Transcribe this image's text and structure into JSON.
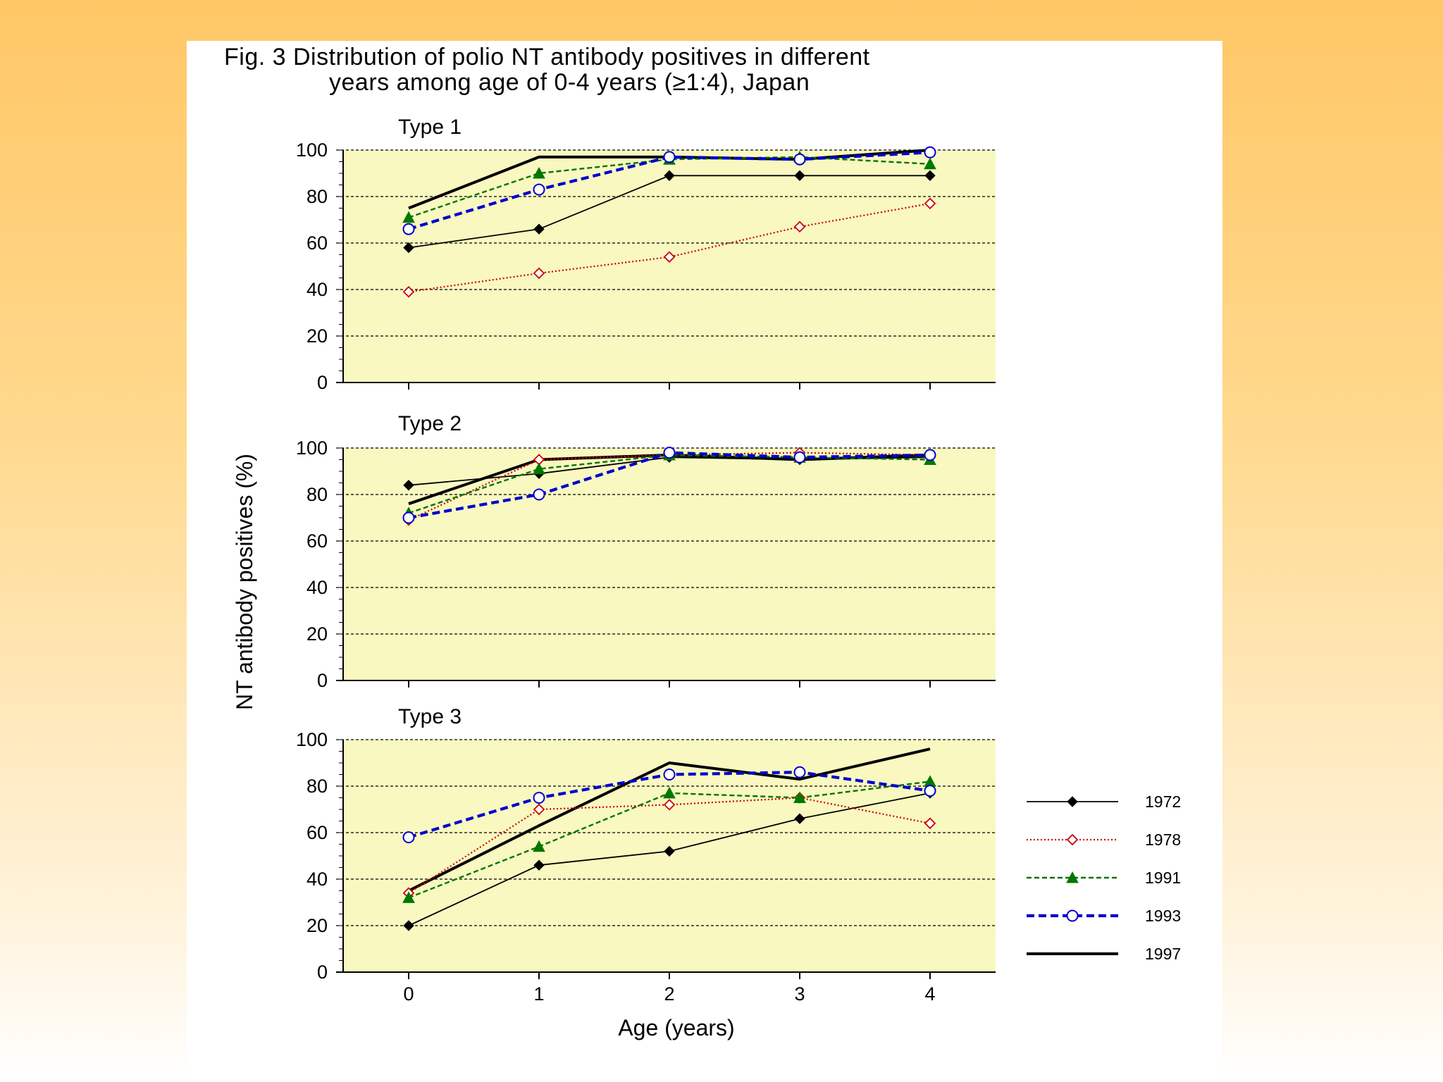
{
  "title_line1": "Fig. 3  Distribution of polio NT antibody positives in different",
  "title_line2": "years among  age of 0-4 years (≥1:4), Japan",
  "colors": {
    "plot_bg": "#F8F8C0",
    "page_bg_top": "#FFC766",
    "panel_bg": "#FFFFFF",
    "s1972": "#000000",
    "s1978": "#CC0000",
    "s1991": "#007700",
    "s1993": "#0000CC",
    "s1997": "#000000"
  },
  "chart_data": {
    "type": "line",
    "ylabel": "NT antibody positives (%)",
    "xlabel": "Age (years)",
    "x": [
      0,
      1,
      2,
      3,
      4
    ],
    "xtick_labels": [
      "0",
      "1",
      "2",
      "3",
      "4"
    ],
    "ylim": [
      0,
      100
    ],
    "yticks": [
      0,
      20,
      40,
      60,
      80,
      100
    ],
    "ytick_labels": [
      "0",
      "20",
      "40",
      "60",
      "80",
      "100"
    ],
    "grid": "horizontal-dashed",
    "legend_position": "right-bottom",
    "legend": [
      {
        "name": "1972",
        "marker": "filled-diamond",
        "line": "solid-thin",
        "color": "#000000"
      },
      {
        "name": "1978",
        "marker": "open-diamond",
        "line": "dotted",
        "color": "#CC0000"
      },
      {
        "name": "1991",
        "marker": "filled-triangle",
        "line": "dashed",
        "color": "#007700"
      },
      {
        "name": "1993",
        "marker": "open-circle",
        "line": "dashed-thick",
        "color": "#0000CC"
      },
      {
        "name": "1997",
        "marker": "none",
        "line": "solid-thick",
        "color": "#000000"
      }
    ],
    "panels": [
      {
        "title": "Type 1",
        "series": [
          {
            "name": "1972",
            "values": [
              58,
              66,
              89,
              89,
              89
            ]
          },
          {
            "name": "1978",
            "values": [
              39,
              47,
              54,
              67,
              77
            ]
          },
          {
            "name": "1991",
            "values": [
              71,
              90,
              96,
              97,
              94
            ]
          },
          {
            "name": "1993",
            "values": [
              66,
              83,
              97,
              96,
              99
            ]
          },
          {
            "name": "1997",
            "values": [
              75,
              97,
              97,
              96,
              100
            ]
          }
        ]
      },
      {
        "title": "Type 2",
        "series": [
          {
            "name": "1972",
            "values": [
              84,
              89,
              96,
              95,
              96
            ]
          },
          {
            "name": "1978",
            "values": [
              69,
              95,
              97,
              98,
              97
            ]
          },
          {
            "name": "1991",
            "values": [
              72,
              91,
              97,
              96,
              95
            ]
          },
          {
            "name": "1993",
            "values": [
              70,
              80,
              98,
              96,
              97
            ]
          },
          {
            "name": "1997",
            "values": [
              76,
              95,
              97,
              95,
              97
            ]
          }
        ]
      },
      {
        "title": "Type 3",
        "series": [
          {
            "name": "1972",
            "values": [
              20,
              46,
              52,
              66,
              77
            ]
          },
          {
            "name": "1978",
            "values": [
              34,
              70,
              72,
              75,
              64
            ]
          },
          {
            "name": "1991",
            "values": [
              32,
              54,
              77,
              75,
              82
            ]
          },
          {
            "name": "1993",
            "values": [
              58,
              75,
              85,
              86,
              78
            ]
          },
          {
            "name": "1997",
            "values": [
              35,
              63,
              90,
              83,
              96
            ]
          }
        ]
      }
    ]
  }
}
